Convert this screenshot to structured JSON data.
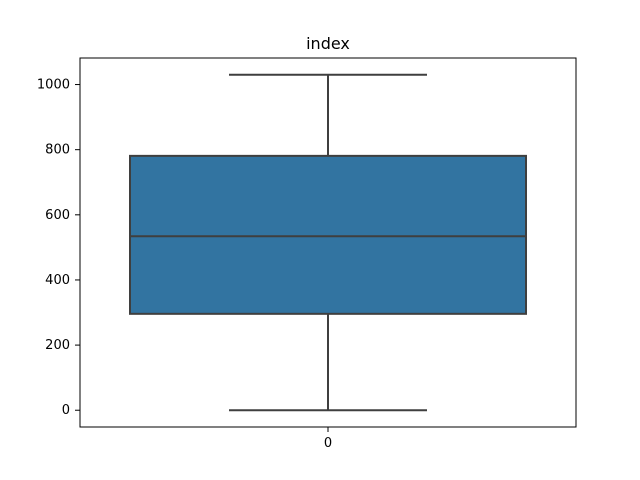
{
  "chart_data": {
    "type": "box",
    "title": "index",
    "xlabel": "",
    "ylabel": "",
    "categories": [
      "0"
    ],
    "series": [
      {
        "min": 0,
        "q1": 296,
        "median": 534,
        "q3": 781,
        "max": 1030
      }
    ],
    "yticks": [
      0,
      200,
      400,
      600,
      800,
      1000
    ],
    "ylim": [
      -51.5,
      1081.5
    ],
    "grid": false,
    "colors": {
      "box_fill": "#3274a1",
      "line": "#3f3f3f"
    }
  }
}
